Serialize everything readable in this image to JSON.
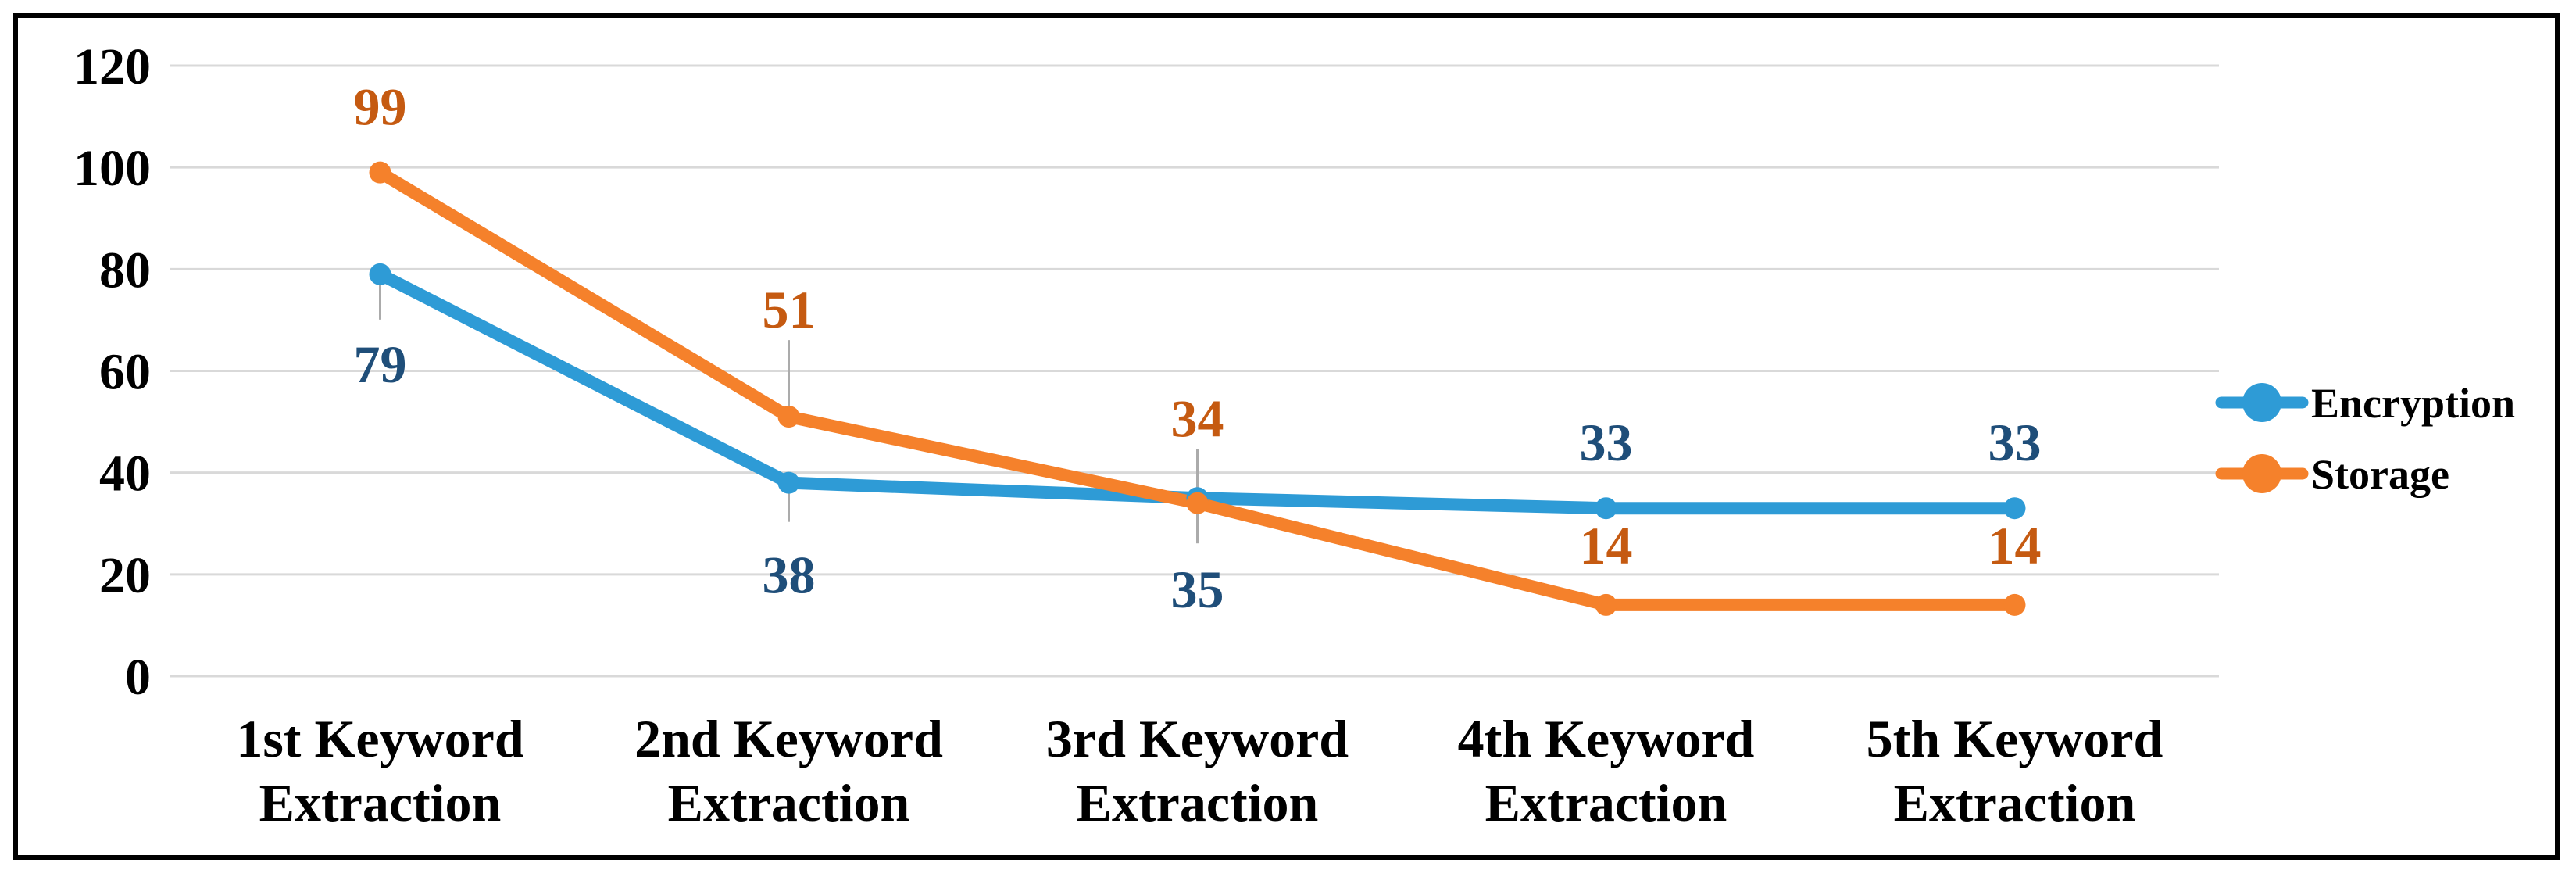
{
  "chart_data": {
    "type": "line",
    "title": "",
    "categories": [
      [
        "1st Keyword",
        "Extraction"
      ],
      [
        "2nd Keyword",
        "Extraction"
      ],
      [
        "3rd Keyword",
        "Extraction"
      ],
      [
        "4th Keyword",
        "Extraction"
      ],
      [
        "5th Keyword",
        "Extraction"
      ]
    ],
    "series": [
      {
        "name": "Encryption",
        "color": "#2E9BD6",
        "label_color": "#1F4E79",
        "values": [
          79,
          38,
          35,
          33,
          33
        ],
        "label_offsets": [
          114,
          117,
          116,
          -85,
          -85
        ],
        "leader_segments": [
          [
            10,
            58
          ],
          [
            10,
            50
          ],
          [
            10,
            58
          ],
          null,
          null
        ]
      },
      {
        "name": "Storage",
        "color": "#F5812B",
        "label_color": "#C55A11",
        "values": [
          99,
          51,
          34,
          14,
          14
        ],
        "label_offsets": [
          -85,
          -138,
          -109,
          -77,
          -77
        ],
        "leader_segments": [
          null,
          [
            -98,
            -10
          ],
          [
            -69,
            -10
          ],
          null,
          null
        ]
      }
    ],
    "y_axis": {
      "min": 0,
      "max": 120,
      "step": 20,
      "tick_labels": [
        "0",
        "20",
        "40",
        "60",
        "80",
        "100",
        "120"
      ]
    },
    "grid": true,
    "legend": {
      "position": "right",
      "entries": [
        "Encryption",
        "Storage"
      ]
    },
    "styles": {
      "background": "#FFFFFF",
      "grid_color": "#D9D9D9",
      "leader_color": "#ABABAB",
      "axis_text_color": "#000000",
      "legend_text_color": "#000000",
      "border_color": "#000000"
    }
  }
}
